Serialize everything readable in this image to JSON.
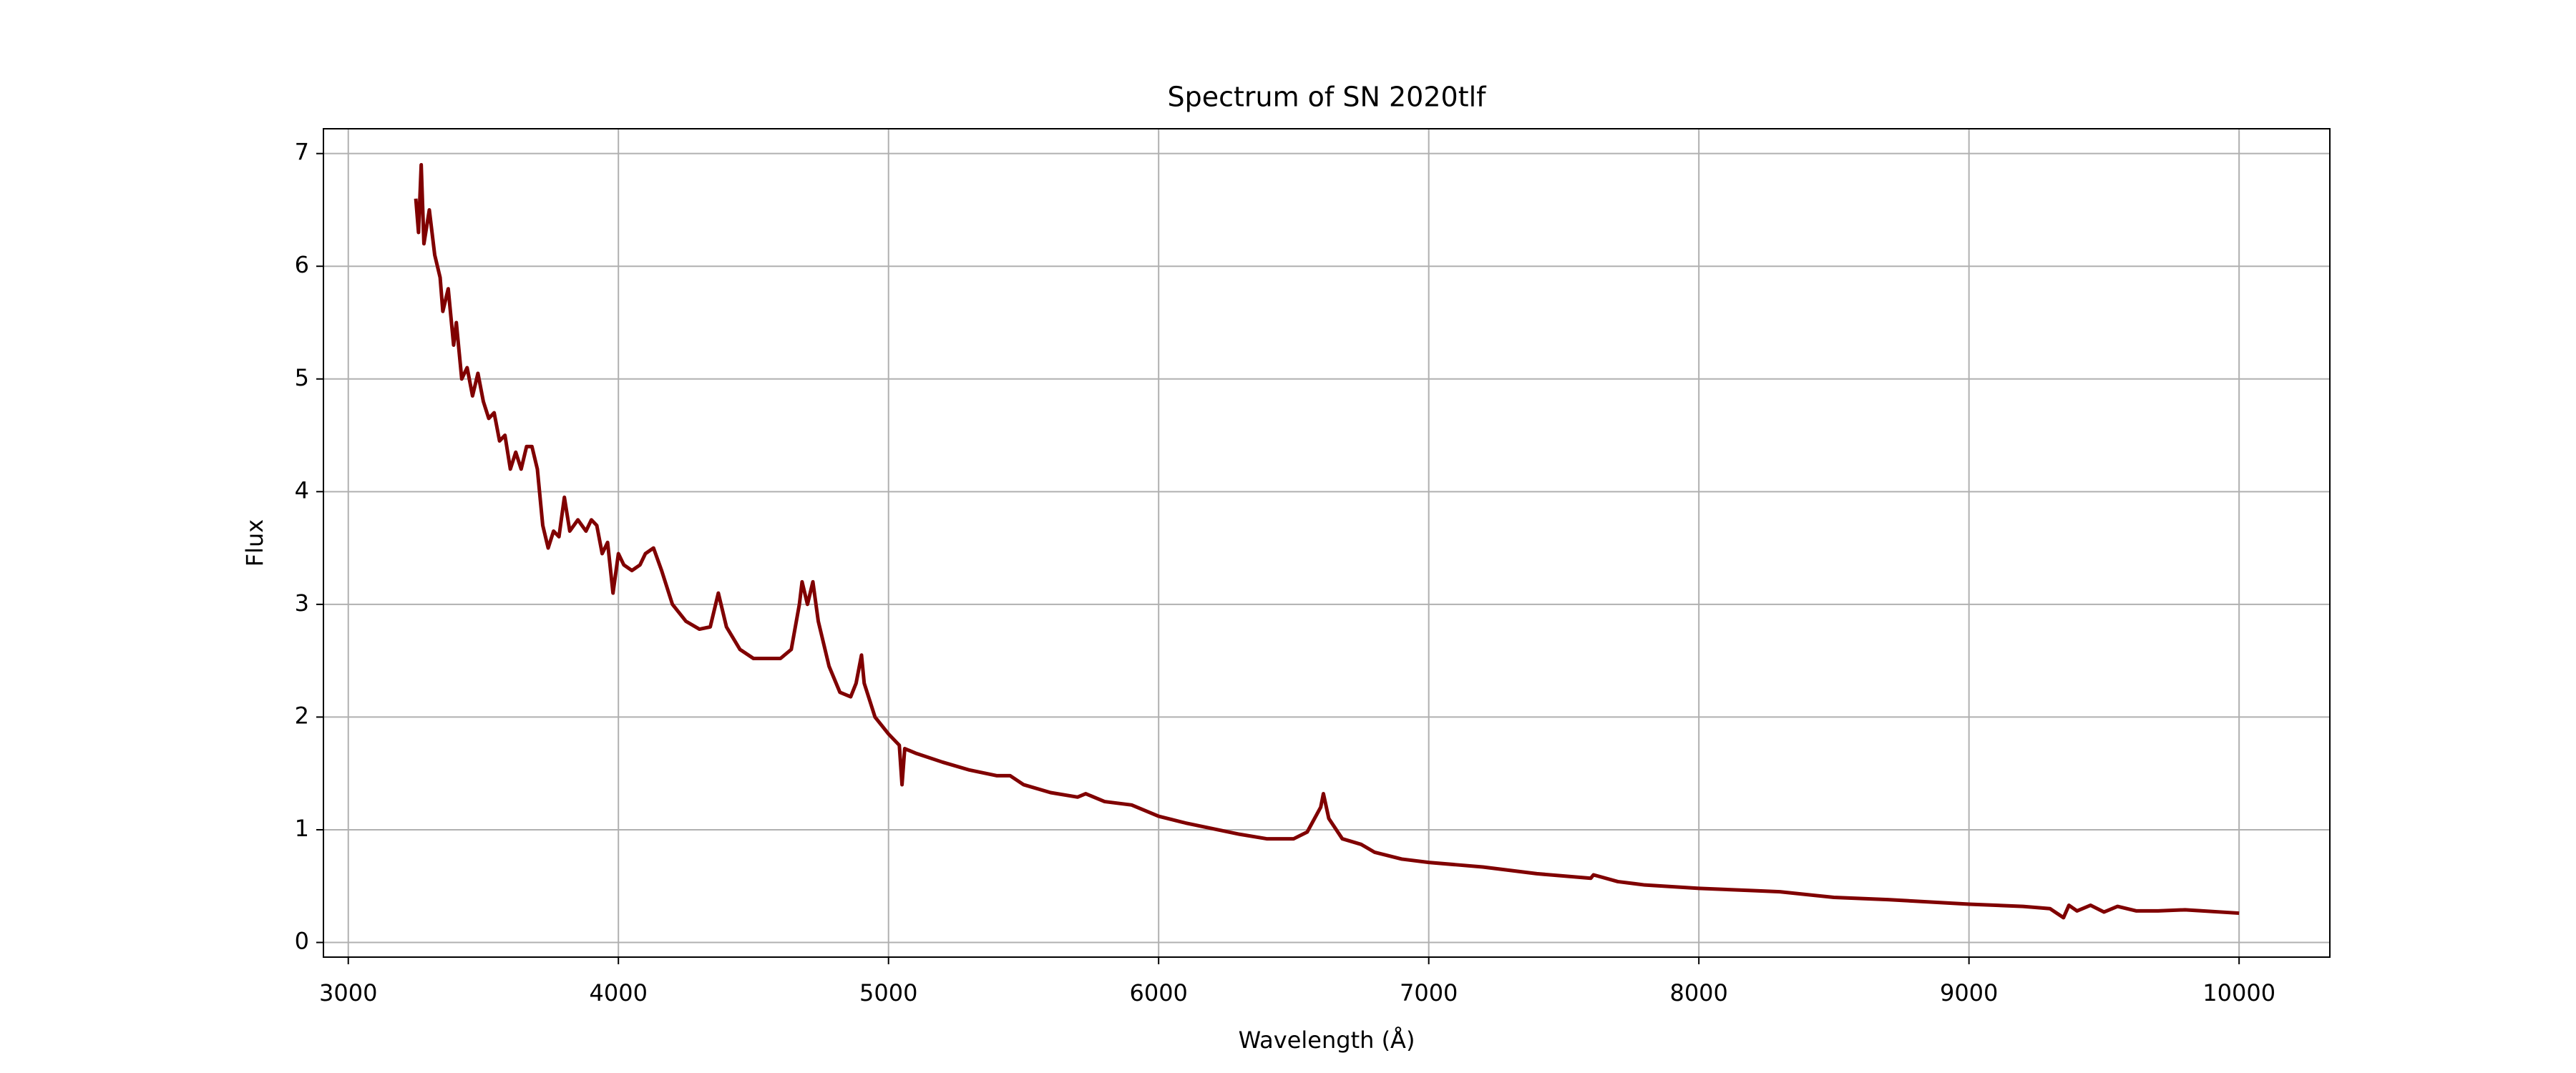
{
  "chart_data": {
    "type": "line",
    "title": "Spectrum of SN 2020tlf",
    "x_label": "Wavelength (Å)",
    "y_label": "Flux",
    "xlim": [
      2908,
      10336
    ],
    "ylim": [
      -0.13,
      7.22
    ],
    "xticks": [
      3000,
      4000,
      5000,
      6000,
      7000,
      8000,
      9000,
      10000
    ],
    "yticks": [
      0,
      1,
      2,
      3,
      4,
      5,
      6,
      7
    ],
    "grid": true,
    "series": [
      {
        "color": "#800000",
        "x": [
          3250,
          3260,
          3270,
          3280,
          3300,
          3320,
          3340,
          3350,
          3370,
          3390,
          3400,
          3420,
          3440,
          3460,
          3480,
          3500,
          3520,
          3540,
          3560,
          3580,
          3600,
          3620,
          3640,
          3660,
          3680,
          3700,
          3720,
          3740,
          3760,
          3780,
          3800,
          3820,
          3850,
          3880,
          3900,
          3920,
          3940,
          3960,
          3980,
          4000,
          4020,
          4050,
          4080,
          4100,
          4130,
          4160,
          4200,
          4250,
          4300,
          4340,
          4370,
          4400,
          4450,
          4500,
          4550,
          4600,
          4640,
          4670,
          4680,
          4700,
          4720,
          4740,
          4780,
          4820,
          4860,
          4880,
          4900,
          4910,
          4950,
          5000,
          5040,
          5050,
          5060,
          5100,
          5200,
          5300,
          5400,
          5450,
          5500,
          5600,
          5700,
          5730,
          5800,
          5900,
          6000,
          6100,
          6200,
          6300,
          6400,
          6500,
          6550,
          6600,
          6610,
          6630,
          6680,
          6750,
          6800,
          6900,
          7000,
          7100,
          7200,
          7400,
          7600,
          7610,
          7700,
          7800,
          8000,
          8200,
          8300,
          8500,
          8700,
          9000,
          9200,
          9300,
          9350,
          9370,
          9400,
          9450,
          9500,
          9550,
          9620,
          9700,
          9800,
          10000
        ],
        "values": [
          6.6,
          6.3,
          6.9,
          6.2,
          6.5,
          6.1,
          5.9,
          5.6,
          5.8,
          5.3,
          5.5,
          5.0,
          5.1,
          4.85,
          5.05,
          4.8,
          4.65,
          4.7,
          4.45,
          4.5,
          4.2,
          4.35,
          4.2,
          4.4,
          4.4,
          4.2,
          3.7,
          3.5,
          3.65,
          3.6,
          3.95,
          3.65,
          3.75,
          3.65,
          3.75,
          3.7,
          3.45,
          3.55,
          3.1,
          3.45,
          3.35,
          3.3,
          3.35,
          3.45,
          3.5,
          3.3,
          3.0,
          2.85,
          2.78,
          2.8,
          3.1,
          2.8,
          2.6,
          2.52,
          2.52,
          2.52,
          2.6,
          3.0,
          3.2,
          3.0,
          3.2,
          2.85,
          2.45,
          2.22,
          2.18,
          2.3,
          2.55,
          2.3,
          2.0,
          1.85,
          1.75,
          1.4,
          1.72,
          1.68,
          1.6,
          1.53,
          1.48,
          1.48,
          1.4,
          1.33,
          1.29,
          1.32,
          1.25,
          1.22,
          1.12,
          1.06,
          1.01,
          0.96,
          0.92,
          0.92,
          0.98,
          1.2,
          1.32,
          1.1,
          0.92,
          0.87,
          0.8,
          0.74,
          0.71,
          0.69,
          0.67,
          0.61,
          0.57,
          0.6,
          0.54,
          0.51,
          0.48,
          0.46,
          0.45,
          0.4,
          0.38,
          0.34,
          0.32,
          0.3,
          0.22,
          0.33,
          0.28,
          0.33,
          0.27,
          0.32,
          0.28,
          0.28,
          0.29,
          0.26
        ]
      }
    ]
  }
}
